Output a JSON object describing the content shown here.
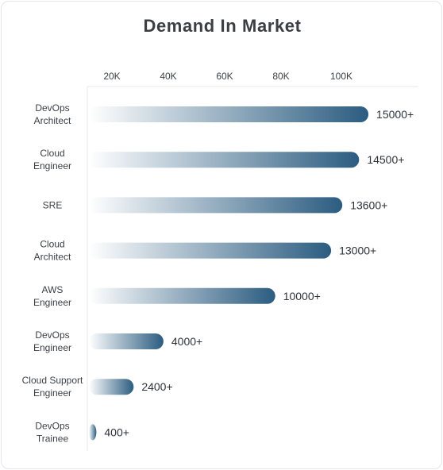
{
  "chart_data": {
    "type": "bar",
    "orientation": "horizontal",
    "title": "Demand In Market",
    "xlabel": "",
    "ylabel": "",
    "x_ticks": [
      "20K",
      "40K",
      "60K",
      "80K",
      "100K"
    ],
    "categories": [
      [
        "DevOps",
        "Architect"
      ],
      [
        "Cloud",
        "Engineer"
      ],
      [
        "SRE"
      ],
      [
        "Cloud",
        "Architect"
      ],
      [
        "AWS",
        "Engineer"
      ],
      [
        "DevOps",
        "Engineer"
      ],
      [
        "Cloud Support",
        "Engineer"
      ],
      [
        "DevOps",
        "Trainee"
      ]
    ],
    "values": [
      15000,
      14500,
      13600,
      13000,
      10000,
      4000,
      2400,
      400
    ],
    "value_labels": [
      "15000+",
      "14500+",
      "13600+",
      "13000+",
      "10000+",
      "4000+",
      "2400+",
      "400+"
    ],
    "bar_color": "#2b5c80",
    "grid": false,
    "legend": "none"
  }
}
